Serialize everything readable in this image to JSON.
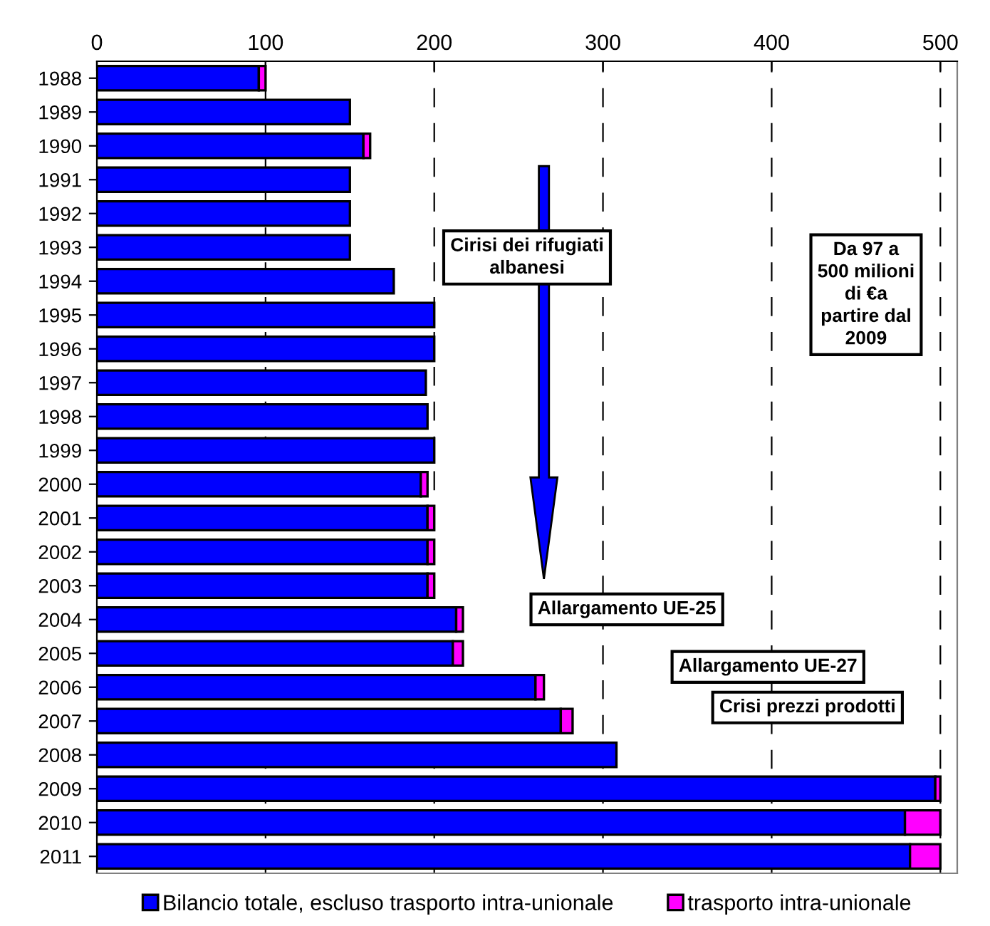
{
  "chart_data": {
    "type": "bar",
    "orientation": "horizontal",
    "stacked": true,
    "categories": [
      "1988",
      "1989",
      "1990",
      "1991",
      "1992",
      "1993",
      "1994",
      "1995",
      "1996",
      "1997",
      "1998",
      "1999",
      "2000",
      "2001",
      "2002",
      "2003",
      "2004",
      "2005",
      "2006",
      "2007",
      "2008",
      "2009",
      "2010",
      "2011"
    ],
    "series": [
      {
        "name": "Bilancio totale, escluso trasporto intra-unionale",
        "color": "#0000ff",
        "values": [
          96,
          150,
          158,
          150,
          150,
          150,
          176,
          200,
          200,
          195,
          196,
          200,
          192,
          196,
          196,
          196,
          213,
          211,
          260,
          275,
          308,
          497,
          479,
          482
        ]
      },
      {
        "name": "trasporto intra-unionale",
        "color": "#ff00ff",
        "values": [
          4,
          null,
          4,
          null,
          null,
          null,
          null,
          null,
          null,
          null,
          null,
          null,
          4,
          4,
          4,
          4,
          4,
          6,
          5,
          7,
          null,
          3,
          21,
          18
        ]
      }
    ],
    "xlim": [
      0,
      510
    ],
    "xticks": [
      0,
      100,
      200,
      300,
      400,
      500
    ],
    "grid": "x",
    "legend": "bottom",
    "annotations": [
      "Cirisi dei rifugiati\nalbanesi",
      "Da 97 a\n500 milioni\ndi €a\npartire dal\n2009",
      "Allargamento UE-25",
      "Allargamento UE-27",
      "Crisi prezzi prodotti"
    ]
  }
}
